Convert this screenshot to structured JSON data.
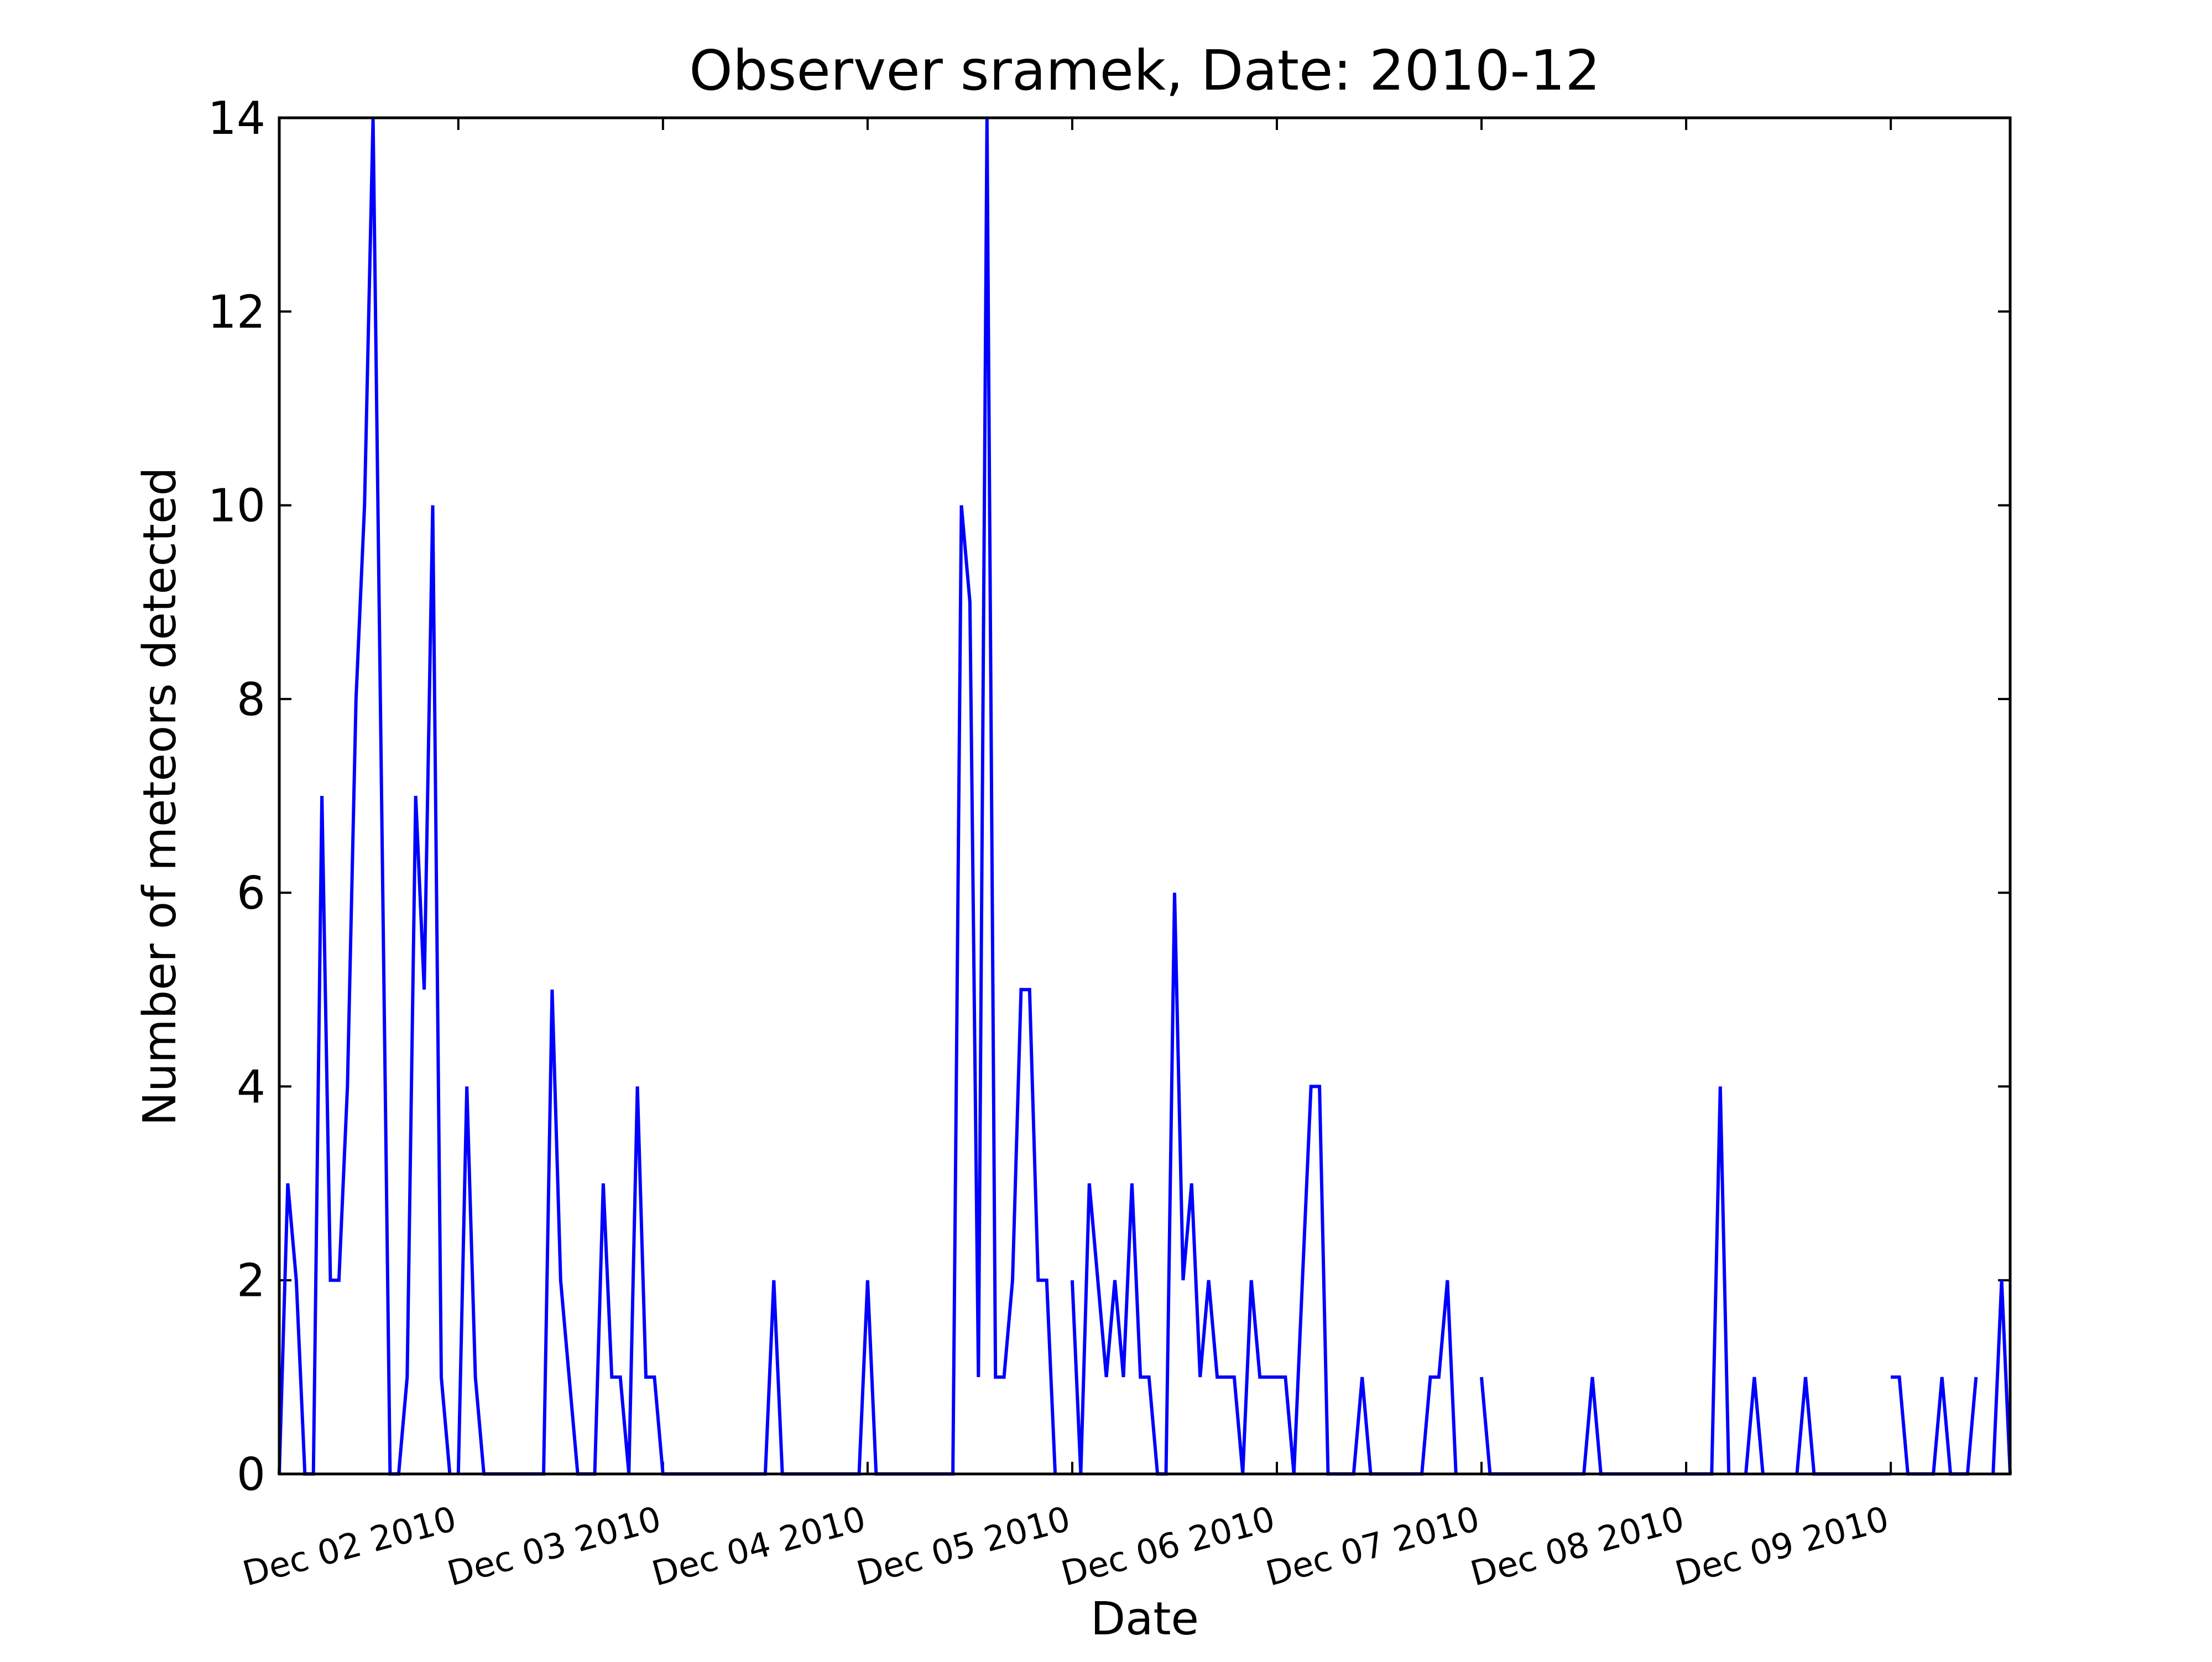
{
  "chart_data": {
    "type": "line",
    "title": "Observer sramek, Date: 2010-12",
    "xlabel": "Date",
    "ylabel": "Number of meteors detected",
    "ylim": [
      0,
      14
    ],
    "yticks": [
      0,
      2,
      4,
      6,
      8,
      10,
      12,
      14
    ],
    "xlim": [
      "2010-12-01 03:00",
      "2010-12-09 14:00"
    ],
    "xticks": [
      {
        "value": "2010-12-02 00:00",
        "label": "Dec 02 2010"
      },
      {
        "value": "2010-12-03 00:00",
        "label": "Dec 03 2010"
      },
      {
        "value": "2010-12-04 00:00",
        "label": "Dec 04 2010"
      },
      {
        "value": "2010-12-05 00:00",
        "label": "Dec 05 2010"
      },
      {
        "value": "2010-12-06 00:00",
        "label": "Dec 06 2010"
      },
      {
        "value": "2010-12-07 00:00",
        "label": "Dec 07 2010"
      },
      {
        "value": "2010-12-08 00:00",
        "label": "Dec 08 2010"
      },
      {
        "value": "2010-12-09 00:00",
        "label": "Dec 09 2010"
      }
    ],
    "grid": false,
    "line_color": "#0000ff",
    "series": [
      {
        "segments": [
          [
            [
              "2010-12-01 03:00",
              0
            ],
            [
              "2010-12-01 04:00",
              3
            ],
            [
              "2010-12-01 05:00",
              2
            ],
            [
              "2010-12-01 06:00",
              0
            ],
            [
              "2010-12-01 07:00",
              0
            ],
            [
              "2010-12-01 08:00",
              7
            ],
            [
              "2010-12-01 09:00",
              2
            ],
            [
              "2010-12-01 10:00",
              2
            ],
            [
              "2010-12-01 11:00",
              4
            ],
            [
              "2010-12-01 12:00",
              8
            ],
            [
              "2010-12-01 13:00",
              10
            ],
            [
              "2010-12-01 14:00",
              14
            ],
            [
              "2010-12-01 15:00",
              7
            ],
            [
              "2010-12-01 16:00",
              0
            ],
            [
              "2010-12-01 17:00",
              0
            ],
            [
              "2010-12-01 18:00",
              1
            ],
            [
              "2010-12-01 19:00",
              7
            ],
            [
              "2010-12-01 20:00",
              5
            ],
            [
              "2010-12-01 21:00",
              10
            ],
            [
              "2010-12-01 22:00",
              1
            ],
            [
              "2010-12-01 23:00",
              0
            ]
          ],
          [
            [
              "2010-12-02 00:00",
              0
            ],
            [
              "2010-12-02 01:00",
              4
            ],
            [
              "2010-12-02 02:00",
              1
            ],
            [
              "2010-12-02 03:00",
              0
            ],
            [
              "2010-12-02 04:00",
              0
            ],
            [
              "2010-12-02 05:00",
              0
            ],
            [
              "2010-12-02 06:00",
              0
            ],
            [
              "2010-12-02 07:00",
              0
            ],
            [
              "2010-12-02 08:00",
              0
            ],
            [
              "2010-12-02 09:00",
              0
            ],
            [
              "2010-12-02 10:00",
              0
            ],
            [
              "2010-12-02 11:00",
              5
            ],
            [
              "2010-12-02 12:00",
              2
            ],
            [
              "2010-12-02 13:00",
              1
            ],
            [
              "2010-12-02 14:00",
              0
            ],
            [
              "2010-12-02 15:00",
              0
            ],
            [
              "2010-12-02 16:00",
              0
            ],
            [
              "2010-12-02 17:00",
              3
            ],
            [
              "2010-12-02 18:00",
              1
            ],
            [
              "2010-12-02 19:00",
              1
            ],
            [
              "2010-12-02 20:00",
              0
            ],
            [
              "2010-12-02 21:00",
              4
            ],
            [
              "2010-12-02 22:00",
              1
            ],
            [
              "2010-12-02 23:00",
              1
            ],
            [
              "2010-12-03 00:00",
              0
            ],
            [
              "2010-12-03 01:00",
              0
            ],
            [
              "2010-12-03 02:00",
              0
            ],
            [
              "2010-12-03 03:00",
              0
            ],
            [
              "2010-12-03 04:00",
              0
            ],
            [
              "2010-12-03 05:00",
              0
            ],
            [
              "2010-12-03 06:00",
              0
            ],
            [
              "2010-12-03 07:00",
              0
            ],
            [
              "2010-12-03 08:00",
              0
            ],
            [
              "2010-12-03 09:00",
              0
            ],
            [
              "2010-12-03 10:00",
              0
            ],
            [
              "2010-12-03 11:00",
              0
            ],
            [
              "2010-12-03 12:00",
              0
            ],
            [
              "2010-12-03 13:00",
              2
            ],
            [
              "2010-12-03 14:00",
              0
            ],
            [
              "2010-12-03 15:00",
              0
            ],
            [
              "2010-12-03 16:00",
              0
            ],
            [
              "2010-12-03 17:00",
              0
            ],
            [
              "2010-12-03 18:00",
              0
            ],
            [
              "2010-12-03 19:00",
              0
            ],
            [
              "2010-12-03 20:00",
              0
            ],
            [
              "2010-12-03 21:00",
              0
            ],
            [
              "2010-12-03 22:00",
              0
            ],
            [
              "2010-12-03 23:00",
              0
            ],
            [
              "2010-12-04 00:00",
              2
            ],
            [
              "2010-12-04 01:00",
              0
            ],
            [
              "2010-12-04 02:00",
              0
            ],
            [
              "2010-12-04 03:00",
              0
            ],
            [
              "2010-12-04 04:00",
              0
            ],
            [
              "2010-12-04 05:00",
              0
            ],
            [
              "2010-12-04 06:00",
              0
            ],
            [
              "2010-12-04 07:00",
              0
            ],
            [
              "2010-12-04 08:00",
              0
            ],
            [
              "2010-12-04 09:00",
              0
            ],
            [
              "2010-12-04 10:00",
              0
            ],
            [
              "2010-12-04 11:00",
              10
            ],
            [
              "2010-12-04 12:00",
              9
            ],
            [
              "2010-12-04 13:00",
              1
            ],
            [
              "2010-12-04 14:00",
              14
            ],
            [
              "2010-12-04 15:00",
              1
            ],
            [
              "2010-12-04 16:00",
              1
            ],
            [
              "2010-12-04 17:00",
              2
            ],
            [
              "2010-12-04 18:00",
              5
            ],
            [
              "2010-12-04 19:00",
              5
            ],
            [
              "2010-12-04 20:00",
              2
            ],
            [
              "2010-12-04 21:00",
              2
            ],
            [
              "2010-12-04 22:00",
              0
            ]
          ],
          [
            [
              "2010-12-05 00:00",
              2
            ],
            [
              "2010-12-05 01:00",
              0
            ],
            [
              "2010-12-05 02:00",
              3
            ],
            [
              "2010-12-05 03:00",
              2
            ],
            [
              "2010-12-05 04:00",
              1
            ],
            [
              "2010-12-05 05:00",
              2
            ],
            [
              "2010-12-05 06:00",
              1
            ],
            [
              "2010-12-05 07:00",
              3
            ],
            [
              "2010-12-05 08:00",
              1
            ],
            [
              "2010-12-05 09:00",
              1
            ],
            [
              "2010-12-05 10:00",
              0
            ],
            [
              "2010-12-05 11:00",
              0
            ],
            [
              "2010-12-05 12:00",
              6
            ],
            [
              "2010-12-05 13:00",
              2
            ],
            [
              "2010-12-05 14:00",
              3
            ],
            [
              "2010-12-05 15:00",
              1
            ],
            [
              "2010-12-05 16:00",
              2
            ],
            [
              "2010-12-05 17:00",
              1
            ],
            [
              "2010-12-05 18:00",
              1
            ],
            [
              "2010-12-05 19:00",
              1
            ],
            [
              "2010-12-05 20:00",
              0
            ],
            [
              "2010-12-05 21:00",
              2
            ],
            [
              "2010-12-05 22:00",
              1
            ],
            [
              "2010-12-05 23:00",
              1
            ],
            [
              "2010-12-06 00:00",
              1
            ],
            [
              "2010-12-06 01:00",
              1
            ],
            [
              "2010-12-06 02:00",
              0
            ],
            [
              "2010-12-06 03:00",
              2
            ],
            [
              "2010-12-06 04:00",
              4
            ],
            [
              "2010-12-06 05:00",
              4
            ],
            [
              "2010-12-06 06:00",
              0
            ],
            [
              "2010-12-06 07:00",
              0
            ],
            [
              "2010-12-06 08:00",
              0
            ],
            [
              "2010-12-06 09:00",
              0
            ],
            [
              "2010-12-06 10:00",
              1
            ],
            [
              "2010-12-06 11:00",
              0
            ],
            [
              "2010-12-06 12:00",
              0
            ],
            [
              "2010-12-06 13:00",
              0
            ],
            [
              "2010-12-06 14:00",
              0
            ],
            [
              "2010-12-06 15:00",
              0
            ],
            [
              "2010-12-06 16:00",
              0
            ],
            [
              "2010-12-06 17:00",
              0
            ],
            [
              "2010-12-06 18:00",
              1
            ],
            [
              "2010-12-06 19:00",
              1
            ],
            [
              "2010-12-06 20:00",
              2
            ],
            [
              "2010-12-06 21:00",
              0
            ]
          ],
          [
            [
              "2010-12-07 00:00",
              1
            ],
            [
              "2010-12-07 01:00",
              0
            ],
            [
              "2010-12-07 02:00",
              0
            ],
            [
              "2010-12-07 03:00",
              0
            ],
            [
              "2010-12-07 04:00",
              0
            ],
            [
              "2010-12-07 05:00",
              0
            ],
            [
              "2010-12-07 06:00",
              0
            ],
            [
              "2010-12-07 07:00",
              0
            ],
            [
              "2010-12-07 08:00",
              0
            ],
            [
              "2010-12-07 09:00",
              0
            ],
            [
              "2010-12-07 10:00",
              0
            ],
            [
              "2010-12-07 11:00",
              0
            ],
            [
              "2010-12-07 12:00",
              0
            ],
            [
              "2010-12-07 13:00",
              1
            ],
            [
              "2010-12-07 14:00",
              0
            ],
            [
              "2010-12-07 15:00",
              0
            ],
            [
              "2010-12-07 16:00",
              0
            ],
            [
              "2010-12-07 17:00",
              0
            ],
            [
              "2010-12-07 18:00",
              0
            ],
            [
              "2010-12-07 19:00",
              0
            ],
            [
              "2010-12-07 20:00",
              0
            ],
            [
              "2010-12-07 21:00",
              0
            ],
            [
              "2010-12-07 22:00",
              0
            ],
            [
              "2010-12-07 23:00",
              0
            ],
            [
              "2010-12-08 00:00",
              0
            ],
            [
              "2010-12-08 01:00",
              0
            ],
            [
              "2010-12-08 02:00",
              0
            ],
            [
              "2010-12-08 03:00",
              0
            ],
            [
              "2010-12-08 04:00",
              4
            ],
            [
              "2010-12-08 05:00",
              0
            ]
          ],
          [
            [
              "2010-12-08 07:00",
              0
            ],
            [
              "2010-12-08 08:00",
              1
            ],
            [
              "2010-12-08 09:00",
              0
            ]
          ],
          [
            [
              "2010-12-08 13:00",
              0
            ],
            [
              "2010-12-08 14:00",
              1
            ],
            [
              "2010-12-08 15:00",
              0
            ],
            [
              "2010-12-08 16:00",
              0
            ],
            [
              "2010-12-08 17:00",
              0
            ],
            [
              "2010-12-08 18:00",
              0
            ],
            [
              "2010-12-08 19:00",
              0
            ],
            [
              "2010-12-08 20:00",
              0
            ],
            [
              "2010-12-08 21:00",
              0
            ],
            [
              "2010-12-08 22:00",
              0
            ],
            [
              "2010-12-08 23:00",
              0
            ],
            [
              "2010-12-09 00:00",
              0
            ]
          ],
          [
            [
              "2010-12-09 00:00",
              1
            ],
            [
              "2010-12-09 01:00",
              1
            ],
            [
              "2010-12-09 02:00",
              0
            ],
            [
              "2010-12-09 03:00",
              0
            ],
            [
              "2010-12-09 04:00",
              0
            ],
            [
              "2010-12-09 05:00",
              0
            ],
            [
              "2010-12-09 06:00",
              1
            ],
            [
              "2010-12-09 07:00",
              0
            ],
            [
              "2010-12-09 08:00",
              0
            ],
            [
              "2010-12-09 09:00",
              0
            ],
            [
              "2010-12-09 10:00",
              1
            ]
          ],
          [
            [
              "2010-12-09 12:00",
              0
            ],
            [
              "2010-12-09 13:00",
              2
            ],
            [
              "2010-12-09 14:00",
              0
            ]
          ]
        ]
      }
    ]
  }
}
